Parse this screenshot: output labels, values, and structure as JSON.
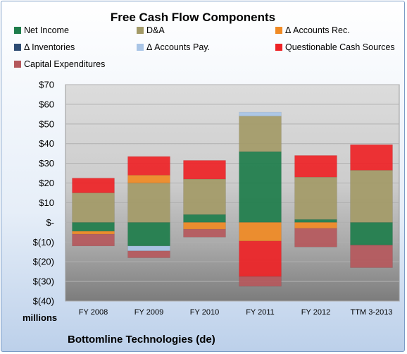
{
  "chart_data": {
    "type": "bar",
    "stacked": true,
    "title": "Free Cash Flow Components",
    "units": "millions",
    "footer": "Bottomline Technologies (de)",
    "categories": [
      "FY 2008",
      "FY 2009",
      "FY 2010",
      "FY 2011",
      "FY 2012",
      "TTM 3-2013"
    ],
    "ylim": [
      -40,
      70
    ],
    "yticks": [
      70,
      60,
      50,
      40,
      30,
      20,
      10,
      0,
      -10,
      -20,
      -30,
      -40
    ],
    "ytick_labels": [
      "$70",
      "$60",
      "$50",
      "$40",
      "$30",
      "$20",
      "$10",
      "$-",
      "$(10)",
      "$(20)",
      "$(30)",
      "$(40)"
    ],
    "grid": true,
    "legend_position": "top",
    "series": [
      {
        "name": "Net Income",
        "color": "#1e7d4b",
        "values": [
          -4.5,
          -12,
          4,
          36,
          1.5,
          -11.5
        ]
      },
      {
        "name": "D&A",
        "color": "#a39a67",
        "values": [
          15,
          20,
          18,
          18,
          21.5,
          26.5
        ]
      },
      {
        "name": "Δ Accounts Rec.",
        "color": "#f08a24",
        "values": [
          -1.5,
          4,
          -3.5,
          -9.5,
          -3,
          0
        ]
      },
      {
        "name": "Δ Inventories",
        "color": "#2d4b73",
        "values": [
          0,
          0,
          0,
          0,
          0,
          0
        ]
      },
      {
        "name": "Δ Accounts Pay.",
        "color": "#a9c5e6",
        "values": [
          0,
          -2.5,
          0,
          2,
          0,
          0
        ]
      },
      {
        "name": "Questionable Cash Sources",
        "color": "#ee2326",
        "values": [
          7.5,
          9.5,
          9.5,
          -18,
          11,
          13
        ]
      },
      {
        "name": "Capital Expenditures",
        "color": "#b5585c",
        "values": [
          -6,
          -3.5,
          -4,
          -5,
          -9.5,
          -11.5
        ]
      }
    ]
  }
}
